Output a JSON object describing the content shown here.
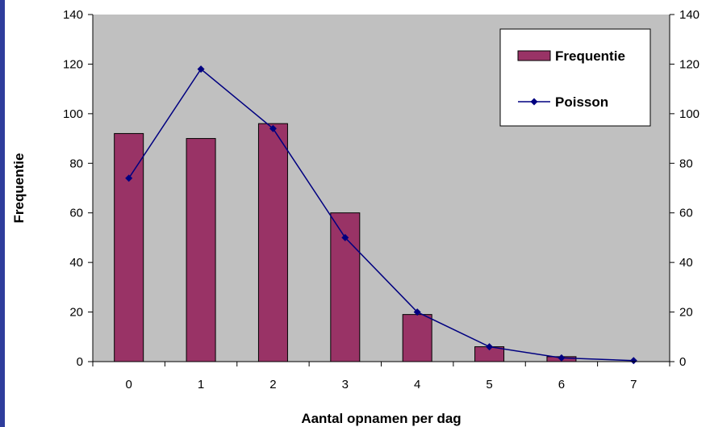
{
  "colors": {
    "plot_background": "#c0c0c0",
    "bar_fill": "#993366",
    "line": "#000080",
    "left_strip": "#2e3d9c"
  },
  "chart_data": {
    "type": "bar",
    "categories": [
      "0",
      "1",
      "2",
      "3",
      "4",
      "5",
      "6",
      "7"
    ],
    "series": [
      {
        "name": "Frequentie",
        "type": "bar",
        "values": [
          92,
          90,
          96,
          60,
          19,
          6,
          2,
          0
        ]
      },
      {
        "name": "Poisson",
        "type": "line",
        "marker": "diamond",
        "values": [
          74,
          118,
          94,
          50,
          20,
          6,
          1.5,
          0.4
        ]
      }
    ],
    "xlabel": "Aantal opnamen per dag",
    "ylabel": "Frequentie",
    "ylim": [
      0,
      140
    ],
    "yticks": [
      0,
      20,
      40,
      60,
      80,
      100,
      120,
      140
    ],
    "secondary_ylim": [
      0,
      140
    ],
    "secondary_yticks": [
      0,
      20,
      40,
      60,
      80,
      100,
      120,
      140
    ],
    "grid": false,
    "legend": "top-right"
  }
}
